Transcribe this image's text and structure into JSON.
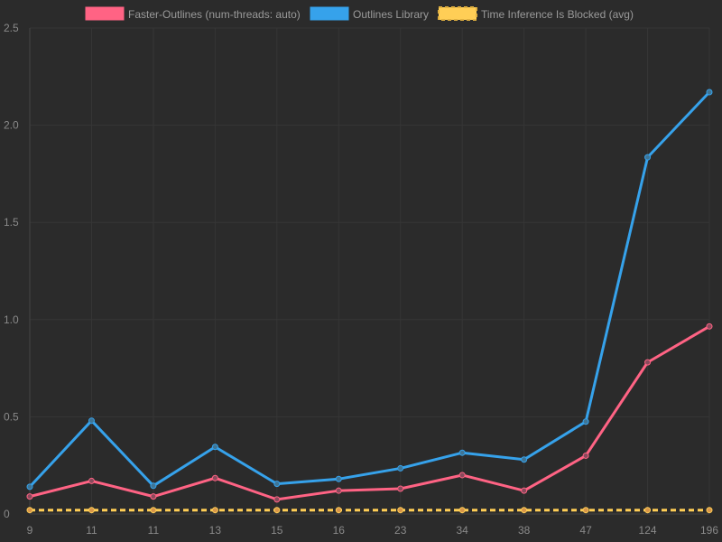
{
  "chart_data": {
    "type": "line",
    "categories": [
      "9",
      "11",
      "11",
      "13",
      "15",
      "16",
      "23",
      "34",
      "38",
      "47",
      "124",
      "196"
    ],
    "series": [
      {
        "name": "Faster-Outlines (num-threads: auto)",
        "color": "#ff6384",
        "values": [
          0.09,
          0.17,
          0.09,
          0.185,
          0.075,
          0.12,
          0.13,
          0.2,
          0.12,
          0.3,
          0.78,
          0.965
        ]
      },
      {
        "name": "Outlines Library",
        "color": "#36a2eb",
        "values": [
          0.14,
          0.48,
          0.145,
          0.345,
          0.155,
          0.18,
          0.235,
          0.315,
          0.28,
          0.475,
          1.835,
          2.17
        ]
      },
      {
        "name": "Time Inference Is Blocked (avg)",
        "color": "#ffce56",
        "dashed": true,
        "values": [
          0.02,
          0.02,
          0.02,
          0.02,
          0.02,
          0.02,
          0.02,
          0.02,
          0.02,
          0.02,
          0.02,
          0.02
        ]
      }
    ],
    "ylim": [
      0,
      2.5
    ],
    "yticks": [
      "0",
      "0.5",
      "1.0",
      "1.5",
      "2.0",
      "2.5"
    ],
    "ytick_values": [
      0,
      0.5,
      1.0,
      1.5,
      2.0,
      2.5
    ],
    "grid": true,
    "legend_position": "top",
    "title": "",
    "xlabel": "",
    "ylabel": ""
  }
}
